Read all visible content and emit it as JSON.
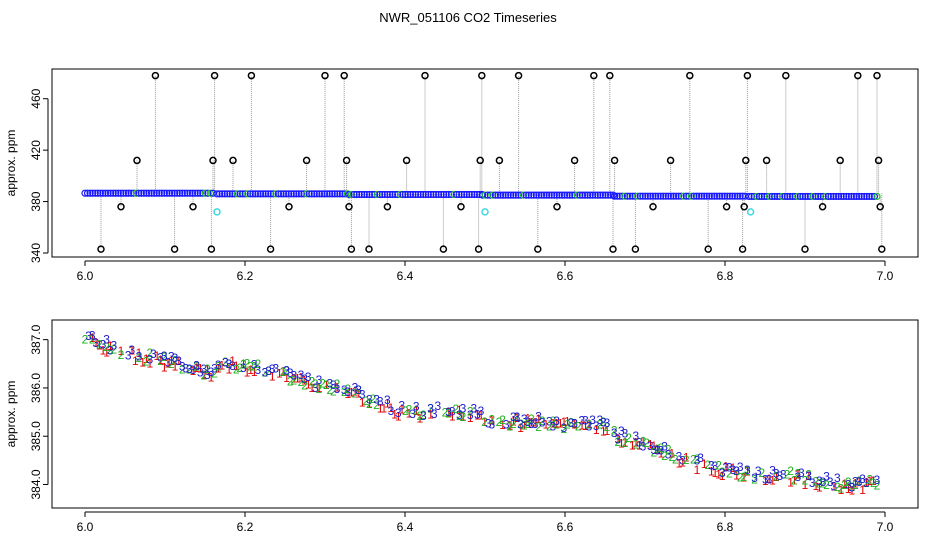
{
  "title": "NWR_051106  CO2 Timeseries",
  "colors": {
    "background": "#ffffff",
    "axis": "#000000",
    "spike_line": "#9a9a9a",
    "marker_main": "#1a1aff",
    "marker_alt": "#20c020",
    "marker_outlier": "#000000",
    "marker_flag": "#40d8e0",
    "label_1": "#e00000",
    "label_2": "#20b020",
    "label_3": "#1a1ad0"
  },
  "chart_data": [
    {
      "type": "scatter",
      "panel": "top",
      "ylabel": "approx. ppm",
      "xlim": [
        6.0,
        7.0
      ],
      "ylim": [
        340,
        480
      ],
      "xticks": [
        "6.0",
        "6.2",
        "6.4",
        "6.6",
        "6.8",
        "7.0"
      ],
      "yticks": [
        "340",
        "380",
        "420",
        "460"
      ],
      "grid": false,
      "series": [
        {
          "marker": "open circle",
          "baseline_segments": [
            {
              "x_start": 6.0,
              "x_end": 6.162,
              "y": 386.5
            },
            {
              "x_start": 6.165,
              "x_end": 6.33,
              "y": 386.0
            },
            {
              "x_start": 6.33,
              "x_end": 6.497,
              "y": 385.5
            },
            {
              "x_start": 6.497,
              "x_end": 6.662,
              "y": 385.0
            },
            {
              "x_start": 6.662,
              "x_end": 6.827,
              "y": 384.2
            },
            {
              "x_start": 6.83,
              "x_end": 6.99,
              "y": 384.0
            }
          ],
          "outliers": [
            {
              "x": 6.02,
              "y": 343
            },
            {
              "x": 6.045,
              "y": 376
            },
            {
              "x": 6.065,
              "y": 412
            },
            {
              "x": 6.088,
              "y": 478
            },
            {
              "x": 6.112,
              "y": 343
            },
            {
              "x": 6.135,
              "y": 376
            },
            {
              "x": 6.158,
              "y": 343
            },
            {
              "x": 6.16,
              "y": 412
            },
            {
              "x": 6.162,
              "y": 478
            },
            {
              "x": 6.185,
              "y": 412
            },
            {
              "x": 6.208,
              "y": 478
            },
            {
              "x": 6.232,
              "y": 343
            },
            {
              "x": 6.255,
              "y": 376
            },
            {
              "x": 6.277,
              "y": 412
            },
            {
              "x": 6.3,
              "y": 478
            },
            {
              "x": 6.324,
              "y": 478
            },
            {
              "x": 6.327,
              "y": 412
            },
            {
              "x": 6.33,
              "y": 376
            },
            {
              "x": 6.333,
              "y": 343
            },
            {
              "x": 6.355,
              "y": 343
            },
            {
              "x": 6.378,
              "y": 376
            },
            {
              "x": 6.402,
              "y": 412
            },
            {
              "x": 6.425,
              "y": 478
            },
            {
              "x": 6.448,
              "y": 343
            },
            {
              "x": 6.47,
              "y": 376
            },
            {
              "x": 6.492,
              "y": 343
            },
            {
              "x": 6.494,
              "y": 412
            },
            {
              "x": 6.496,
              "y": 478
            },
            {
              "x": 6.518,
              "y": 412
            },
            {
              "x": 6.542,
              "y": 478
            },
            {
              "x": 6.566,
              "y": 343
            },
            {
              "x": 6.59,
              "y": 376
            },
            {
              "x": 6.612,
              "y": 412
            },
            {
              "x": 6.636,
              "y": 478
            },
            {
              "x": 6.656,
              "y": 478
            },
            {
              "x": 6.66,
              "y": 343
            },
            {
              "x": 6.662,
              "y": 412
            },
            {
              "x": 6.688,
              "y": 343
            },
            {
              "x": 6.71,
              "y": 376
            },
            {
              "x": 6.732,
              "y": 412
            },
            {
              "x": 6.756,
              "y": 478
            },
            {
              "x": 6.779,
              "y": 343
            },
            {
              "x": 6.802,
              "y": 376
            },
            {
              "x": 6.822,
              "y": 343
            },
            {
              "x": 6.824,
              "y": 376
            },
            {
              "x": 6.826,
              "y": 412
            },
            {
              "x": 6.828,
              "y": 478
            },
            {
              "x": 6.852,
              "y": 412
            },
            {
              "x": 6.876,
              "y": 478
            },
            {
              "x": 6.9,
              "y": 343
            },
            {
              "x": 6.922,
              "y": 376
            },
            {
              "x": 6.944,
              "y": 412
            },
            {
              "x": 6.966,
              "y": 478
            },
            {
              "x": 6.99,
              "y": 478
            },
            {
              "x": 6.992,
              "y": 412
            },
            {
              "x": 6.994,
              "y": 376
            },
            {
              "x": 6.996,
              "y": 343
            }
          ],
          "flagged": [
            {
              "x": 6.165,
              "y": 372
            },
            {
              "x": 6.5,
              "y": 372
            },
            {
              "x": 6.832,
              "y": 372
            }
          ]
        }
      ]
    },
    {
      "type": "scatter",
      "panel": "bottom",
      "ylabel": "approx. ppm",
      "xlim": [
        6.0,
        7.0
      ],
      "ylim": [
        383.7,
        387.2
      ],
      "xticks": [
        "6.0",
        "6.2",
        "6.4",
        "6.6",
        "6.8",
        "7.0"
      ],
      "yticks": [
        "384.0",
        "385.0",
        "386.0",
        "387.0"
      ],
      "grid": false,
      "marker_labels": [
        "1",
        "2",
        "3"
      ],
      "trend": [
        {
          "x": 6.0,
          "y": 387.0
        },
        {
          "x": 6.05,
          "y": 386.75
        },
        {
          "x": 6.1,
          "y": 386.55
        },
        {
          "x": 6.15,
          "y": 386.35
        },
        {
          "x": 6.163,
          "y": 386.3
        },
        {
          "x": 6.165,
          "y": 386.55
        },
        {
          "x": 6.2,
          "y": 386.45
        },
        {
          "x": 6.25,
          "y": 386.25
        },
        {
          "x": 6.3,
          "y": 386.0
        },
        {
          "x": 6.33,
          "y": 385.95
        },
        {
          "x": 6.332,
          "y": 385.95
        },
        {
          "x": 6.36,
          "y": 385.72
        },
        {
          "x": 6.4,
          "y": 385.5
        },
        {
          "x": 6.45,
          "y": 385.5
        },
        {
          "x": 6.497,
          "y": 385.42
        },
        {
          "x": 6.5,
          "y": 385.32
        },
        {
          "x": 6.55,
          "y": 385.3
        },
        {
          "x": 6.6,
          "y": 385.25
        },
        {
          "x": 6.66,
          "y": 385.2
        },
        {
          "x": 6.665,
          "y": 385.0
        },
        {
          "x": 6.7,
          "y": 384.82
        },
        {
          "x": 6.75,
          "y": 384.5
        },
        {
          "x": 6.8,
          "y": 384.3
        },
        {
          "x": 6.827,
          "y": 384.22
        },
        {
          "x": 6.83,
          "y": 384.18
        },
        {
          "x": 6.88,
          "y": 384.18
        },
        {
          "x": 6.92,
          "y": 384.05
        },
        {
          "x": 6.95,
          "y": 384.0
        },
        {
          "x": 6.99,
          "y": 384.05
        }
      ]
    }
  ]
}
